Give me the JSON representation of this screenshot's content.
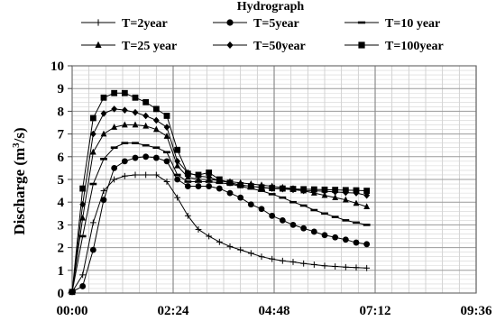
{
  "chart_data": {
    "type": "line",
    "title": "Hydrograph",
    "xlabel": "",
    "ylabel": "Discharge (m³/s)",
    "ylim": [
      0,
      10
    ],
    "xlim_hours": [
      0,
      9.6
    ],
    "grid": true,
    "legend_position": "top",
    "x_tick_labels": [
      "00:00",
      "02:24",
      "04:48",
      "07:12",
      "09:36"
    ],
    "y_tick_labels": [
      "0",
      "1",
      "2",
      "3",
      "4",
      "5",
      "6",
      "7",
      "8",
      "9",
      "10"
    ],
    "x": [
      "00:00",
      "00:15",
      "00:30",
      "00:45",
      "01:00",
      "01:15",
      "01:30",
      "01:45",
      "02:00",
      "02:15",
      "02:30",
      "02:45",
      "03:00",
      "03:15",
      "03:30",
      "03:45",
      "04:00",
      "04:15",
      "04:30",
      "04:45",
      "05:00",
      "05:15",
      "05:30",
      "05:45",
      "06:00",
      "06:15",
      "06:30",
      "06:45",
      "07:00"
    ],
    "series": [
      {
        "name": "T=2year",
        "marker": "plus",
        "color": "#000000",
        "values": [
          0.05,
          0.8,
          3.1,
          4.5,
          5.0,
          5.15,
          5.2,
          5.2,
          5.2,
          4.9,
          4.2,
          3.4,
          2.8,
          2.5,
          2.25,
          2.05,
          1.9,
          1.75,
          1.6,
          1.5,
          1.42,
          1.37,
          1.3,
          1.25,
          1.2,
          1.17,
          1.14,
          1.12,
          1.1
        ]
      },
      {
        "name": "T=5year",
        "marker": "circle",
        "color": "#000000",
        "values": [
          0.05,
          0.3,
          1.9,
          4.1,
          5.5,
          5.8,
          5.95,
          6.0,
          5.95,
          5.8,
          5.0,
          4.7,
          4.7,
          4.7,
          4.6,
          4.4,
          4.2,
          3.9,
          3.7,
          3.4,
          3.2,
          3.0,
          2.85,
          2.7,
          2.55,
          2.45,
          2.35,
          2.22,
          2.15
        ]
      },
      {
        "name": "T=10 year",
        "marker": "dash",
        "color": "#000000",
        "values": [
          0.05,
          2.5,
          4.8,
          5.9,
          6.4,
          6.6,
          6.6,
          6.5,
          6.4,
          6.2,
          5.2,
          4.9,
          4.9,
          4.9,
          4.85,
          4.8,
          4.7,
          4.6,
          4.5,
          4.35,
          4.2,
          4.0,
          3.85,
          3.65,
          3.5,
          3.35,
          3.2,
          3.1,
          3.0
        ]
      },
      {
        "name": "T=25 year",
        "marker": "triangle",
        "color": "#000000",
        "values": [
          0.05,
          3.3,
          6.2,
          7.0,
          7.3,
          7.4,
          7.4,
          7.35,
          7.2,
          6.9,
          5.6,
          5.1,
          5.0,
          5.0,
          4.95,
          4.9,
          4.85,
          4.8,
          4.75,
          4.7,
          4.65,
          4.6,
          4.5,
          4.4,
          4.3,
          4.2,
          4.1,
          3.95,
          3.8
        ]
      },
      {
        "name": "T=50year",
        "marker": "diamond",
        "color": "#000000",
        "values": [
          0.05,
          3.9,
          7.0,
          7.9,
          8.1,
          8.05,
          7.95,
          7.8,
          7.6,
          7.3,
          5.8,
          5.3,
          5.15,
          5.1,
          4.95,
          4.85,
          4.75,
          4.7,
          4.65,
          4.6,
          4.58,
          4.55,
          4.5,
          4.5,
          4.48,
          4.45,
          4.42,
          4.4,
          4.3
        ]
      },
      {
        "name": "T=100year",
        "marker": "square",
        "color": "#000000",
        "values": [
          0.05,
          4.6,
          7.7,
          8.6,
          8.8,
          8.8,
          8.6,
          8.4,
          8.1,
          7.8,
          6.3,
          5.25,
          5.2,
          5.3,
          5.0,
          4.85,
          4.75,
          4.7,
          4.65,
          4.62,
          4.6,
          4.58,
          4.57,
          4.56,
          4.55,
          4.54,
          4.53,
          4.52,
          4.5
        ]
      }
    ]
  }
}
